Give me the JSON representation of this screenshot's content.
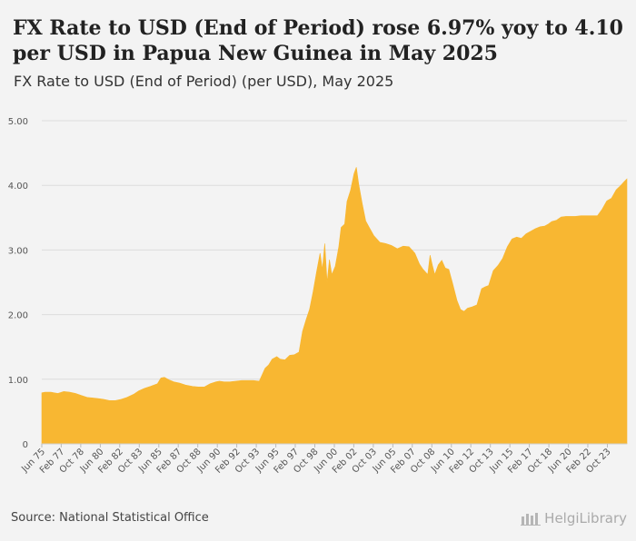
{
  "title": "FX Rate to USD (End of Period) rose 6.97% yoy to 4.10 per USD in Papua New Guinea in May 2025",
  "subtitle": "FX Rate to USD (End of Period) (per USD), May 2025",
  "source": "Source: National Statistical Office",
  "brand": "HelgiLibrary",
  "colors": {
    "area": "#f8b732",
    "grid": "#dcdcdc",
    "axis_text": "#555"
  },
  "chart_data": {
    "type": "area",
    "title": "FX Rate to USD (End of Period) (per USD), May 2025",
    "xlabel": "",
    "ylabel": "",
    "ylim": [
      0,
      5
    ],
    "xlim": [
      1975.42,
      2025.42
    ],
    "grid": true,
    "y_ticks": [
      0,
      1,
      2,
      3,
      4,
      5
    ],
    "y_tick_labels": [
      "0",
      "1.00",
      "2.00",
      "3.00",
      "4.00",
      "5.00"
    ],
    "x_ticks": [
      1975.42,
      1977.08,
      1978.75,
      1980.42,
      1982.08,
      1983.75,
      1985.42,
      1987.08,
      1988.75,
      1990.42,
      1992.08,
      1993.75,
      1995.42,
      1997.08,
      1998.75,
      2000.42,
      2002.08,
      2003.75,
      2005.42,
      2007.08,
      2008.75,
      2010.42,
      2012.08,
      2013.75,
      2015.42,
      2017.08,
      2018.75,
      2020.42,
      2022.08,
      2023.75
    ],
    "x_tick_labels": [
      "Jun 75",
      "Feb 77",
      "Oct 78",
      "Jun 80",
      "Feb 82",
      "Oct 83",
      "Jun 85",
      "Feb 87",
      "Oct 88",
      "Jun 90",
      "Feb 92",
      "Oct 93",
      "Jun 95",
      "Feb 97",
      "Oct 98",
      "Jun 00",
      "Feb 02",
      "Oct 03",
      "Jun 05",
      "Feb 07",
      "Oct 08",
      "Jun 10",
      "Feb 12",
      "Oct 13",
      "Jun 15",
      "Feb 17",
      "Oct 18",
      "Jun 20",
      "Feb 22",
      "Oct 23"
    ],
    "series": [
      {
        "name": "FX Rate to USD (End of Period)",
        "x": [
          1975.42,
          1975.7,
          1976.2,
          1976.5,
          1976.8,
          1977.3,
          1977.8,
          1978.3,
          1978.8,
          1979.3,
          1979.8,
          1980.3,
          1980.7,
          1981.2,
          1981.7,
          1982.2,
          1982.7,
          1983.3,
          1983.7,
          1984.2,
          1984.7,
          1985.3,
          1985.6,
          1985.9,
          1986.3,
          1986.7,
          1987.2,
          1987.7,
          1988.3,
          1988.8,
          1989.3,
          1989.8,
          1990.3,
          1990.6,
          1991.0,
          1991.5,
          1992.0,
          1992.5,
          1993.0,
          1993.5,
          1994.0,
          1994.5,
          1994.8,
          1995.1,
          1995.5,
          1995.8,
          1996.2,
          1996.6,
          1997.0,
          1997.4,
          1997.7,
          1998.0,
          1998.3,
          1998.6,
          1998.9,
          1999.2,
          1999.4,
          1999.6,
          1999.8,
          2000.0,
          2000.2,
          2000.5,
          2000.8,
          2001.0,
          2001.3,
          2001.5,
          2001.8,
          2002.1,
          2002.3,
          2002.5,
          2002.8,
          2003.1,
          2003.4,
          2003.8,
          2004.3,
          2004.8,
          2005.3,
          2005.8,
          2006.3,
          2006.8,
          2007.3,
          2007.7,
          2008.0,
          2008.4,
          2008.6,
          2008.8,
          2009.0,
          2009.3,
          2009.6,
          2009.9,
          2010.2,
          2010.5,
          2010.9,
          2011.2,
          2011.5,
          2011.8,
          2012.2,
          2012.6,
          2013.0,
          2013.3,
          2013.6,
          2014.0,
          2014.4,
          2014.8,
          2015.2,
          2015.6,
          2016.0,
          2016.4,
          2016.8,
          2017.2,
          2017.6,
          2018.0,
          2018.4,
          2018.7,
          2019.0,
          2019.4,
          2019.8,
          2020.2,
          2020.6,
          2021.0,
          2021.5,
          2022.0,
          2022.5,
          2022.9,
          2023.3,
          2023.7,
          2024.1,
          2024.5,
          2024.9,
          2025.2,
          2025.42
        ],
        "values": [
          0.79,
          0.8,
          0.8,
          0.79,
          0.78,
          0.81,
          0.8,
          0.78,
          0.75,
          0.72,
          0.71,
          0.7,
          0.69,
          0.67,
          0.67,
          0.69,
          0.72,
          0.77,
          0.82,
          0.86,
          0.89,
          0.93,
          1.02,
          1.03,
          0.99,
          0.96,
          0.94,
          0.91,
          0.89,
          0.88,
          0.88,
          0.93,
          0.96,
          0.97,
          0.96,
          0.96,
          0.97,
          0.98,
          0.98,
          0.98,
          0.97,
          1.17,
          1.22,
          1.31,
          1.35,
          1.31,
          1.3,
          1.37,
          1.38,
          1.42,
          1.74,
          1.92,
          2.08,
          2.35,
          2.66,
          2.95,
          2.7,
          3.1,
          2.5,
          2.85,
          2.62,
          2.75,
          3.05,
          3.35,
          3.4,
          3.75,
          3.92,
          4.18,
          4.28,
          4.02,
          3.72,
          3.45,
          3.35,
          3.22,
          3.12,
          3.1,
          3.07,
          3.02,
          3.06,
          3.05,
          2.95,
          2.78,
          2.7,
          2.62,
          2.92,
          2.76,
          2.62,
          2.77,
          2.84,
          2.72,
          2.7,
          2.5,
          2.22,
          2.08,
          2.05,
          2.1,
          2.12,
          2.15,
          2.4,
          2.43,
          2.45,
          2.68,
          2.76,
          2.87,
          3.05,
          3.17,
          3.2,
          3.18,
          3.25,
          3.29,
          3.33,
          3.36,
          3.37,
          3.4,
          3.44,
          3.46,
          3.51,
          3.52,
          3.52,
          3.52,
          3.53,
          3.53,
          3.53,
          3.53,
          3.63,
          3.76,
          3.8,
          3.93,
          4.0,
          4.06,
          4.1
        ]
      }
    ]
  }
}
